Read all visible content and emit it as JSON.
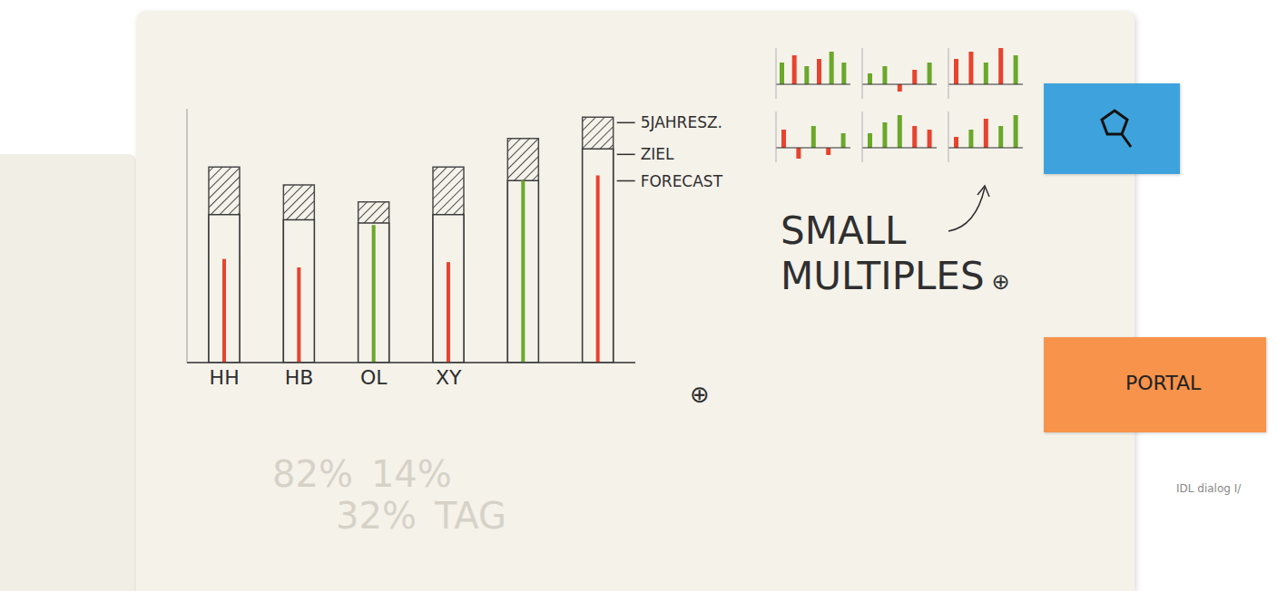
{
  "chart_data": [
    {
      "type": "bar",
      "categories": [
        "HH",
        "HB",
        "OL",
        "XY",
        null,
        null
      ],
      "series": [
        {
          "name": "5JAHRESZ.",
          "color": "#4a4a4a",
          "values": [
            185,
            168,
            152,
            185,
            212,
            232
          ]
        },
        {
          "name": "ZIEL",
          "color": "#3a3a3a",
          "values": [
            140,
            135,
            132,
            140,
            172,
            202
          ]
        },
        {
          "name": "FORECAST",
          "colors": [
            "#e8432e",
            "#e8432e",
            "#6aa82a",
            "#e8432e",
            "#6aa82a",
            "#e8432e"
          ],
          "values": [
            98,
            90,
            130,
            95,
            172,
            177
          ]
        }
      ],
      "ylim": [
        0,
        240
      ],
      "tick_labels": "x",
      "annotations": [
        "⊕"
      ]
    },
    {
      "type": "bar",
      "values": [
        6,
        8,
        5,
        7,
        9,
        6
      ],
      "colors": [
        "#6aa82a",
        "#e8432e",
        "#6aa82a",
        "#e8432e",
        "#6aa82a",
        "#6aa82a"
      ],
      "ylim": [
        -4,
        10
      ],
      "tick_labels": false
    },
    {
      "type": "bar",
      "values": [
        3,
        5,
        -2,
        4,
        6
      ],
      "colors": [
        "#6aa82a",
        "#6aa82a",
        "#e8432e",
        "#e8432e",
        "#6aa82a"
      ],
      "ylim": [
        -4,
        10
      ],
      "tick_labels": false
    },
    {
      "type": "bar",
      "values": [
        7,
        9,
        6,
        10,
        8
      ],
      "colors": [
        "#e8432e",
        "#e8432e",
        "#6aa82a",
        "#e8432e",
        "#6aa82a"
      ],
      "ylim": [
        -4,
        10
      ],
      "tick_labels": false
    },
    {
      "type": "bar",
      "values": [
        5,
        -3,
        6,
        -2,
        4
      ],
      "colors": [
        "#e8432e",
        "#e8432e",
        "#6aa82a",
        "#e8432e",
        "#6aa82a"
      ],
      "ylim": [
        -4,
        10
      ],
      "tick_labels": false
    },
    {
      "type": "bar",
      "values": [
        4,
        7,
        9,
        6,
        5
      ],
      "colors": [
        "#6aa82a",
        "#6aa82a",
        "#6aa82a",
        "#e8432e",
        "#e8432e"
      ],
      "ylim": [
        -4,
        10
      ],
      "tick_labels": false
    },
    {
      "type": "bar",
      "values": [
        3,
        5,
        8,
        6,
        9
      ],
      "colors": [
        "#e8432e",
        "#6aa82a",
        "#e8432e",
        "#6aa82a",
        "#6aa82a"
      ],
      "ylim": [
        -4,
        10
      ],
      "tick_labels": false
    }
  ],
  "small_multiples": {
    "title": "SMALL MULTIPLES",
    "annotation": "⊕"
  },
  "tabs": [
    "PORTAL"
  ],
  "caption": "IDL dialog I/",
  "background_text": [
    "82%",
    "14%",
    "32%",
    "TAG"
  ]
}
